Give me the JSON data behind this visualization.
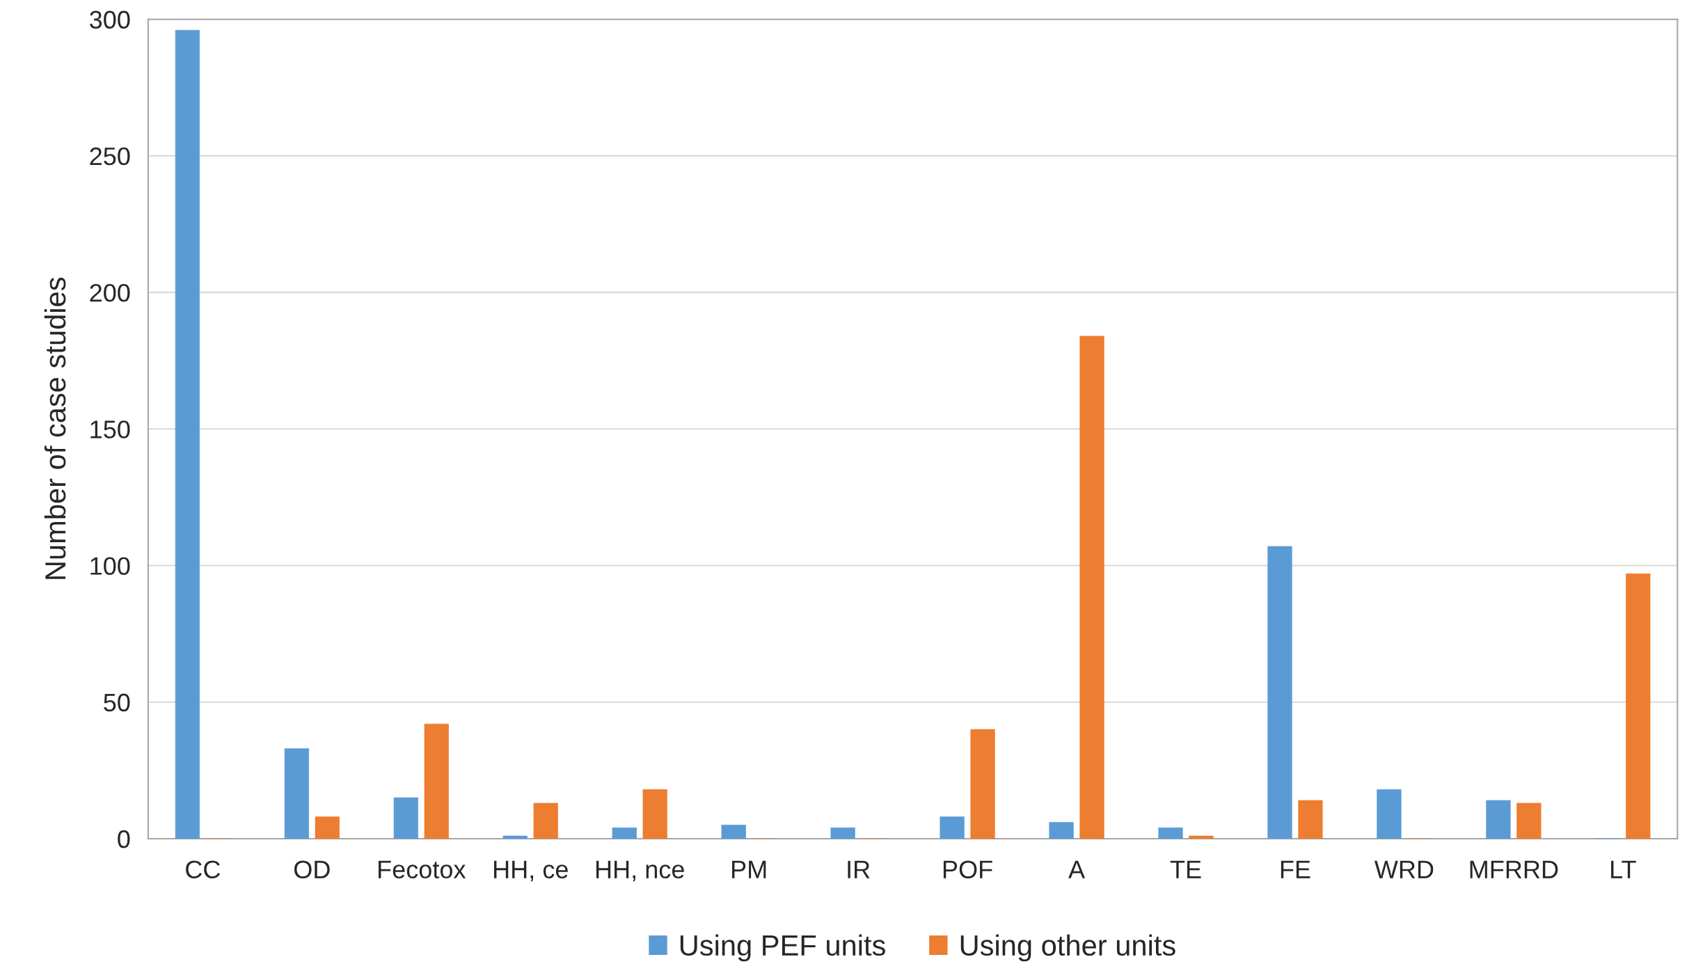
{
  "chart_data": {
    "type": "bar",
    "ylabel": "Number of case studies",
    "categories": [
      "CC",
      "OD",
      "Fecotox",
      "HH, ce",
      "HH, nce",
      "PM",
      "IR",
      "POF",
      "A",
      "TE",
      "FE",
      "WRD",
      "MFRRD",
      "LT"
    ],
    "series": [
      {
        "name": "Using PEF units",
        "color": "#5b9bd5",
        "values": [
          296,
          33,
          15,
          1,
          4,
          5,
          4,
          8,
          6,
          4,
          107,
          18,
          14,
          0
        ]
      },
      {
        "name": "Using other units",
        "color": "#ed7d31",
        "values": [
          0,
          8,
          42,
          13,
          18,
          0,
          0,
          40,
          184,
          1,
          14,
          0,
          13,
          97
        ]
      }
    ],
    "ylim": [
      0,
      300
    ],
    "yticks": [
      0,
      50,
      100,
      150,
      200,
      250,
      300
    ],
    "grid": "y",
    "legend": "bottom"
  }
}
